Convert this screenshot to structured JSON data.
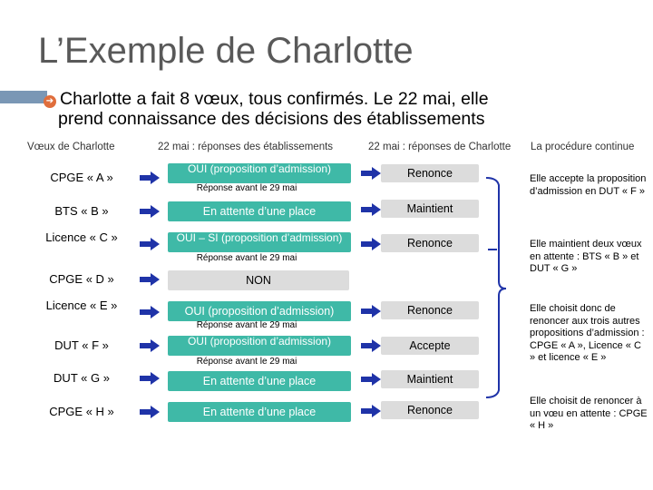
{
  "title": "L’Exemple de Charlotte",
  "intro": {
    "line1": "Charlotte a fait 8 vœux, tous confirmés. Le 22 mai, elle",
    "line2": "prend connaissance des décisions des établissements"
  },
  "headers": {
    "wishes": "Vœux de Charlotte",
    "responses": "22 mai : réponses des établissements",
    "decisions": "22 mai : réponses de Charlotte",
    "procedure": "La procédure continue"
  },
  "rows": [
    {
      "wish": "CPGE « A »",
      "response": "OUI (proposition d’admission)",
      "deadline": "Réponse avant le 29 mai",
      "decision": "Renonce"
    },
    {
      "wish": "BTS « B »",
      "response": "En attente d’une place",
      "deadline": "",
      "decision": "Maintient"
    },
    {
      "wish": "Licence « C »",
      "response": "OUI – SI (proposition d’admission)",
      "deadline": "Réponse avant le 29 mai",
      "decision": "Renonce"
    },
    {
      "wish": "CPGE « D »",
      "response": "NON",
      "deadline": "",
      "decision": ""
    },
    {
      "wish": "Licence « E »",
      "response": "OUI (proposition d’admission)",
      "deadline": "Réponse avant le 29 mai",
      "decision": "Renonce"
    },
    {
      "wish": "DUT « F »",
      "response": "OUI (proposition d’admission)",
      "deadline": "Réponse avant le 29 mai",
      "decision": "Accepte"
    },
    {
      "wish": "DUT « G »",
      "response": "En attente d’une place",
      "deadline": "",
      "decision": "Maintient"
    },
    {
      "wish": "CPGE « H »",
      "response": "En attente d’une place",
      "deadline": "",
      "decision": "Renonce"
    }
  ],
  "notes": [
    "Elle accepte la proposition d’admission en DUT « F »",
    "Elle maintient deux vœux en attente : BTS « B » et DUT « G »",
    "Elle choisit donc de renoncer aux trois autres propositions d’admission : CPGE « A », Licence « C » et licence « E »",
    "Elle choisit de renoncer à un vœu en attente : CPGE « H »"
  ],
  "colors": {
    "teal": "#3fb9a7",
    "arrow": "#1f33a8",
    "bullet": "#e06e3c",
    "gray": "#dcdcdc"
  }
}
